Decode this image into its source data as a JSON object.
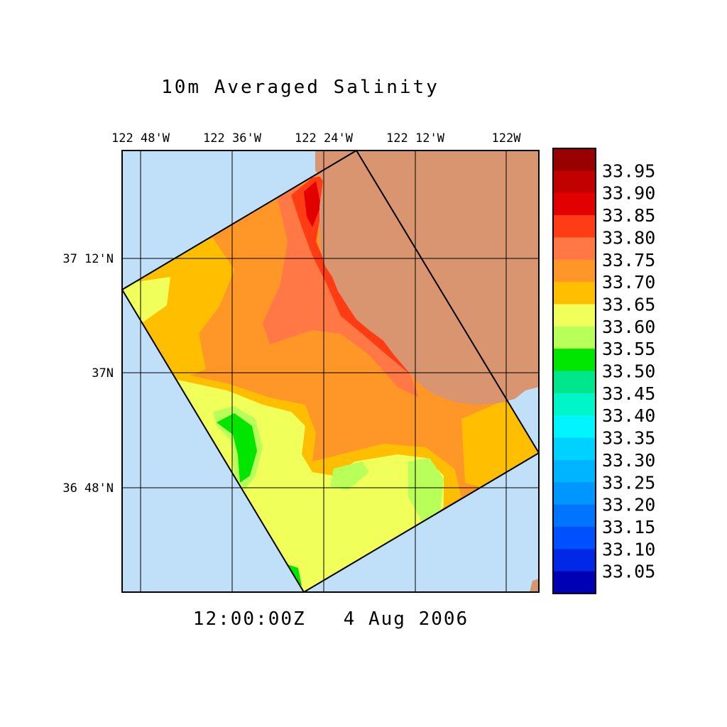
{
  "title": "10m Averaged Salinity",
  "footer": {
    "time": "12:00:00Z",
    "date": "4 Aug 2006"
  },
  "axes": {
    "lon_labels": [
      "122 48'W",
      "122 36'W",
      "122 24'W",
      "122 12'W",
      "122W"
    ],
    "lat_labels": [
      "37 12'N",
      "37N",
      "36 48'N"
    ]
  },
  "colorbar": {
    "labels": [
      "33.95",
      "33.90",
      "33.85",
      "33.80",
      "33.75",
      "33.70",
      "33.65",
      "33.60",
      "33.55",
      "33.50",
      "33.45",
      "33.40",
      "33.35",
      "33.30",
      "33.25",
      "33.20",
      "33.15",
      "33.10",
      "33.05"
    ],
    "colors": [
      "#990000",
      "#c20000",
      "#e30000",
      "#ff3c14",
      "#ff7846",
      "#ff9628",
      "#ffbe00",
      "#f0ff5a",
      "#b9ff5a",
      "#00e600",
      "#00e68c",
      "#00f5c8",
      "#00f5ff",
      "#00d2ff",
      "#00b4ff",
      "#0096ff",
      "#0073ff",
      "#0050ff",
      "#0028e6",
      "#0000b4"
    ]
  },
  "colors": {
    "ocean": "#bfe0f8",
    "land": "#d99470",
    "s_3375": "#ff7846",
    "s_3370": "#ff9628",
    "s_3365": "#ffbe00",
    "s_3360": "#f0ff5a",
    "s_3355": "#b9ff5a",
    "s_3350": "#00e600",
    "s_3380": "#ff3c14",
    "s_3385": "#e30000",
    "grid": "#000000"
  }
}
